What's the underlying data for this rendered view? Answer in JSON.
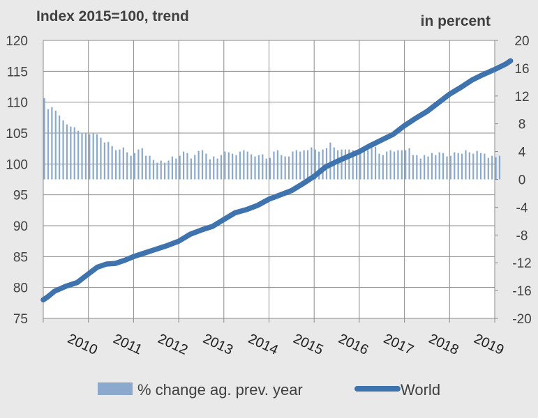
{
  "chart_data": {
    "type": "bar+line",
    "left_axis_title": "Index 2015=100, trend",
    "right_axis_title": "in percent",
    "left_axis": {
      "min": 75,
      "max": 120,
      "step": 5,
      "ticks": [
        "120",
        "115",
        "110",
        "105",
        "100",
        "95",
        "90",
        "85",
        "80",
        "75"
      ]
    },
    "right_axis": {
      "min": -20,
      "max": 20,
      "step": 4,
      "ticks": [
        "20",
        "16",
        "12",
        "8",
        "4",
        "0",
        "-4",
        "-8",
        "-12",
        "-16",
        "-20"
      ]
    },
    "x_range": [
      2009,
      2019
    ],
    "x_ticks": [
      "2010",
      "2011",
      "2012",
      "2013",
      "2014",
      "2015",
      "2016",
      "2017",
      "2018",
      "2019"
    ],
    "grid": true,
    "legend_position": "bottom",
    "colors": {
      "bars": "#8aa9cc",
      "line": "#3e73ad",
      "grid": "#8c8c8c",
      "plot_bg": "#ffffff",
      "page_bg": "#e9e9e9"
    },
    "series": [
      {
        "name": "% change ag. prev. year",
        "kind": "bar",
        "axis": "right",
        "start": "2009-01",
        "frequency": "monthly",
        "values": [
          11.7,
          10.1,
          10.4,
          9.9,
          9.2,
          8.5,
          7.9,
          7.6,
          7.5,
          7.0,
          6.7,
          6.6,
          6.5,
          6.7,
          6.5,
          6.0,
          5.3,
          5.4,
          4.8,
          4.2,
          4.3,
          4.6,
          3.9,
          3.4,
          3.8,
          4.3,
          4.5,
          3.4,
          3.4,
          2.8,
          2.4,
          2.7,
          2.4,
          2.7,
          3.3,
          3.0,
          3.4,
          4.0,
          3.8,
          3.0,
          3.5,
          4.1,
          4.2,
          3.7,
          2.9,
          3.3,
          3.0,
          3.5,
          4.0,
          3.9,
          3.7,
          3.5,
          4.0,
          4.2,
          4.0,
          3.6,
          3.3,
          3.5,
          3.6,
          3.0,
          3.1,
          4.0,
          4.2,
          3.5,
          3.3,
          3.3,
          4.0,
          4.2,
          4.0,
          4.2,
          4.2,
          4.6,
          4.3,
          4.0,
          4.3,
          4.5,
          5.3,
          4.6,
          4.2,
          4.3,
          4.3,
          4.3,
          4.2,
          4.2,
          4.0,
          4.2,
          4.2,
          4.5,
          4.7,
          3.7,
          3.5,
          4.0,
          4.2,
          4.0,
          4.2,
          4.2,
          4.2,
          4.5,
          3.5,
          3.5,
          3.0,
          3.5,
          3.3,
          3.8,
          3.5,
          3.9,
          3.8,
          3.3,
          3.4,
          3.9,
          3.8,
          3.7,
          4.2,
          3.9,
          3.7,
          4.1,
          3.8,
          3.7,
          3.1,
          3.4,
          3.2,
          3.4
        ]
      },
      {
        "name": "World",
        "kind": "line",
        "axis": "left",
        "points": [
          [
            2009.0,
            78.0
          ],
          [
            2009.1,
            78.5
          ],
          [
            2009.25,
            79.4
          ],
          [
            2009.5,
            80.2
          ],
          [
            2009.75,
            80.8
          ],
          [
            2010.0,
            82.2
          ],
          [
            2010.2,
            83.3
          ],
          [
            2010.4,
            83.8
          ],
          [
            2010.6,
            83.9
          ],
          [
            2010.8,
            84.4
          ],
          [
            2011.0,
            85.0
          ],
          [
            2011.25,
            85.6
          ],
          [
            2011.5,
            86.2
          ],
          [
            2011.75,
            86.8
          ],
          [
            2012.0,
            87.5
          ],
          [
            2012.25,
            88.6
          ],
          [
            2012.5,
            89.3
          ],
          [
            2012.75,
            89.9
          ],
          [
            2013.0,
            91.0
          ],
          [
            2013.25,
            92.1
          ],
          [
            2013.5,
            92.6
          ],
          [
            2013.75,
            93.3
          ],
          [
            2014.0,
            94.3
          ],
          [
            2014.25,
            95.0
          ],
          [
            2014.5,
            95.7
          ],
          [
            2014.75,
            96.8
          ],
          [
            2015.0,
            98.0
          ],
          [
            2015.25,
            99.5
          ],
          [
            2015.5,
            100.4
          ],
          [
            2015.75,
            101.2
          ],
          [
            2016.0,
            102.0
          ],
          [
            2016.25,
            103.0
          ],
          [
            2016.5,
            103.9
          ],
          [
            2016.75,
            104.8
          ],
          [
            2017.0,
            106.2
          ],
          [
            2017.25,
            107.4
          ],
          [
            2017.5,
            108.5
          ],
          [
            2017.75,
            109.9
          ],
          [
            2018.0,
            111.3
          ],
          [
            2018.25,
            112.4
          ],
          [
            2018.5,
            113.6
          ],
          [
            2018.75,
            114.5
          ],
          [
            2019.0,
            115.3
          ],
          [
            2019.25,
            116.2
          ],
          [
            2019.35,
            116.7
          ]
        ]
      }
    ]
  }
}
